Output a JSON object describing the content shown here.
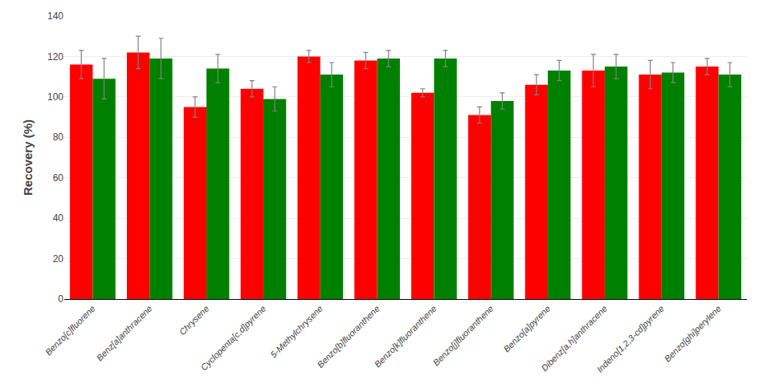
{
  "chart_data": {
    "type": "bar",
    "y_label": "Recovery (%)",
    "categories": [
      "Benzo[c]fluorene",
      "Benz[a]anthracene",
      "Chrysene",
      "Cyclopenta[c,d]pyrene",
      "5-Methylchrysene",
      "Benzo[b]fluoranthene",
      "Benzo[k]fluoranthene",
      "Benzo[j]fluoranthene",
      "Benzo[a]pyrene",
      "Dibenz[a,h]anthracene",
      "Indeno[1,2,3-cd]pyrene",
      "Benzo[ghi]perylene"
    ],
    "series": [
      {
        "color": "#ff0000",
        "values": [
          116,
          122,
          95,
          104,
          120,
          118,
          102,
          91,
          106,
          113,
          111,
          115
        ],
        "errors": [
          7,
          8,
          5,
          4,
          3,
          4,
          2,
          4,
          5,
          8,
          7,
          4
        ]
      },
      {
        "color": "#008000",
        "values": [
          109,
          119,
          114,
          99,
          111,
          119,
          119,
          98,
          113,
          115,
          112,
          111
        ],
        "errors": [
          10,
          10,
          7,
          6,
          6,
          4,
          4,
          4,
          5,
          6,
          5,
          6
        ]
      }
    ],
    "ylim": [
      0,
      140
    ],
    "yticks": [
      0,
      20,
      40,
      60,
      80,
      100,
      120,
      140
    ],
    "grid": true
  }
}
